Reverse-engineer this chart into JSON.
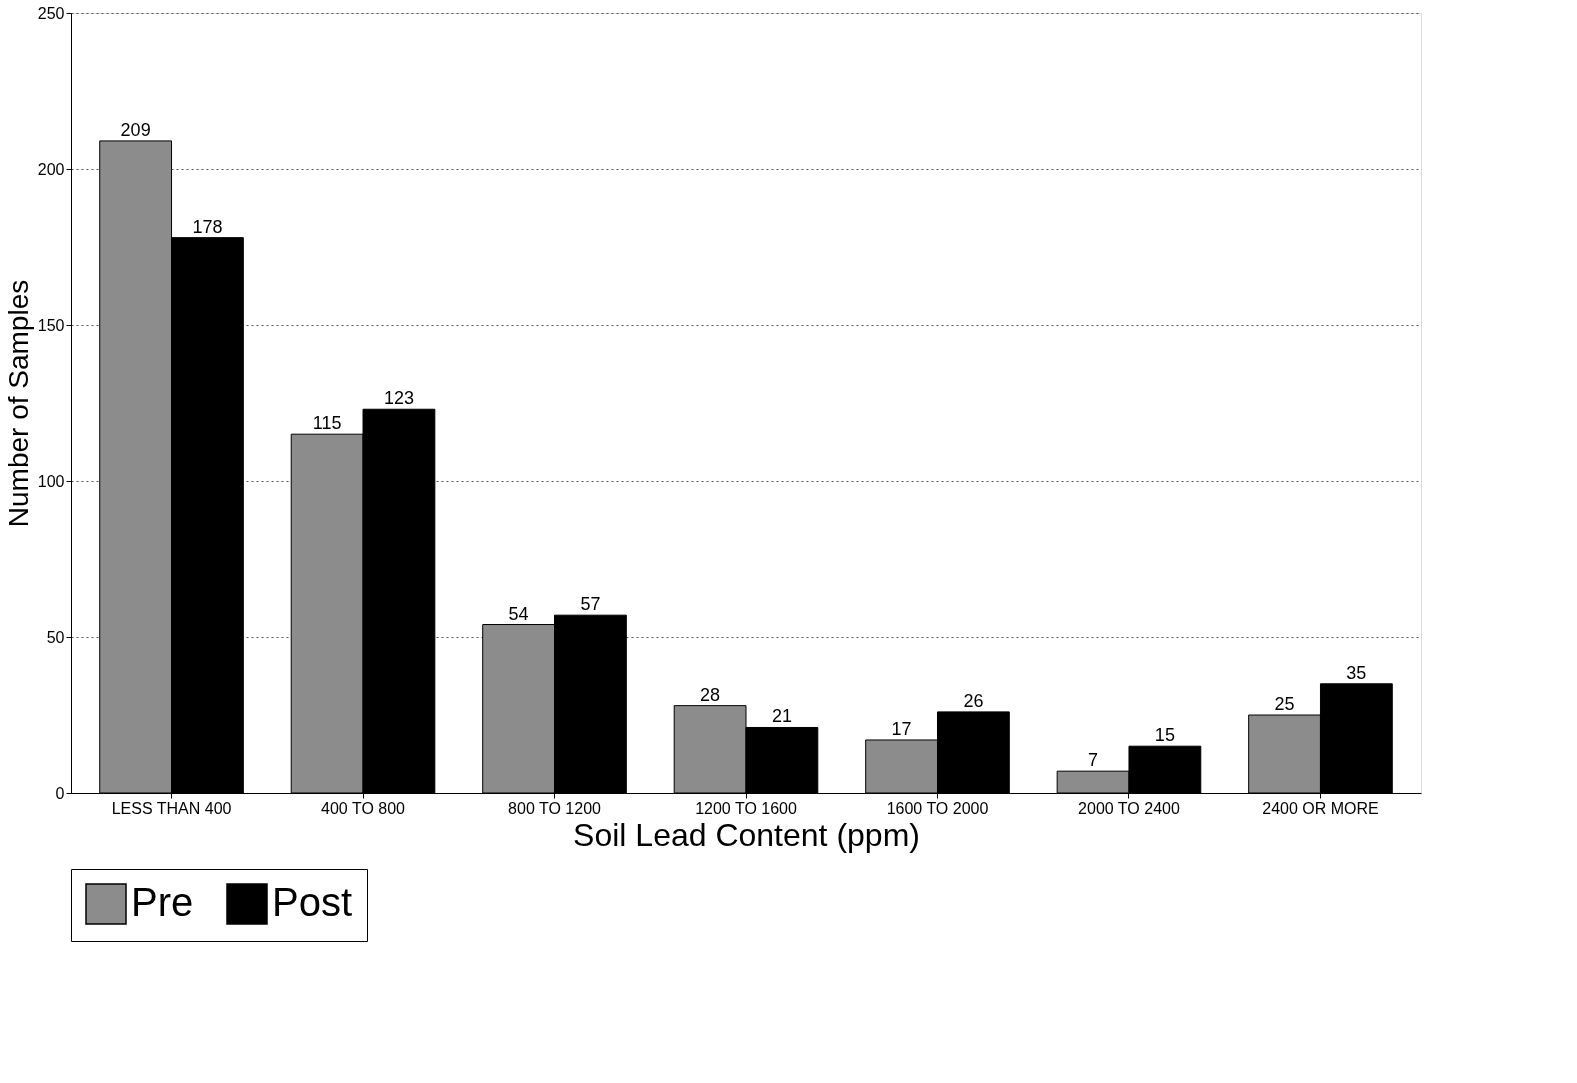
{
  "chart_data": {
    "type": "bar",
    "xlabel": "Soil Lead Content (ppm)",
    "ylabel": "Number of Samples",
    "categories": [
      "LESS THAN 400",
      "400 TO 800",
      "800 TO 1200",
      "1200 TO 1600",
      "1600 TO 2000",
      "2000 TO 2400",
      "2400 OR MORE"
    ],
    "series": [
      {
        "name": "Pre",
        "color": "#8c8c8c",
        "values": [
          209,
          115,
          54,
          28,
          17,
          7,
          25
        ]
      },
      {
        "name": "Post",
        "color": "#000000",
        "values": [
          178,
          123,
          57,
          21,
          26,
          15,
          35
        ]
      }
    ],
    "ylim": [
      0,
      250
    ],
    "yticks": [
      0,
      50,
      100,
      150,
      200,
      250
    ],
    "grid": "y",
    "legend": "bottom",
    "data_labels": true
  }
}
